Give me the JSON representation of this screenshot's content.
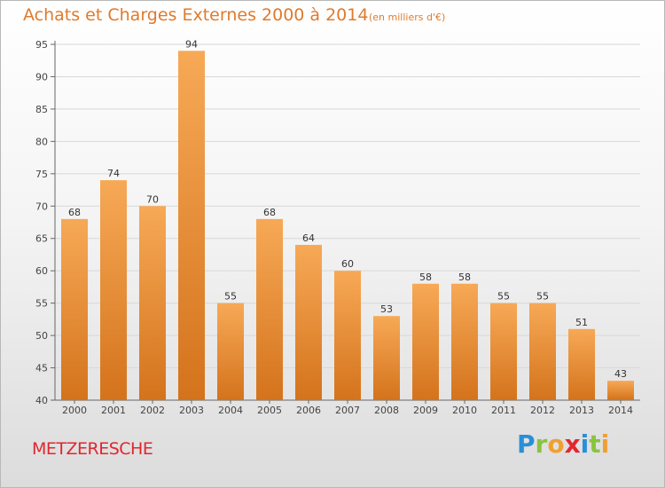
{
  "header": {
    "title": "Achats et Charges Externes 2000 à 2014",
    "subtitle": "(en milliers d'€)"
  },
  "footer": {
    "place": "METZERESCHE",
    "logo_text": "Proxiti"
  },
  "colors": {
    "bar_light": "#f7a956",
    "bar_dark": "#d4731c",
    "title": "#e07a2c",
    "place": "#e0262f"
  },
  "chart_data": {
    "type": "bar",
    "title": "Achats et Charges Externes 2000 à 2014",
    "subtitle": "(en milliers d'€)",
    "xlabel": "",
    "ylabel": "",
    "categories": [
      "2000",
      "2001",
      "2002",
      "2003",
      "2004",
      "2005",
      "2006",
      "2007",
      "2008",
      "2009",
      "2010",
      "2011",
      "2012",
      "2013",
      "2014"
    ],
    "values": [
      68,
      74,
      70,
      94,
      55,
      68,
      64,
      60,
      53,
      58,
      58,
      55,
      55,
      51,
      43
    ],
    "ylim": [
      40,
      95
    ],
    "yticks": [
      40,
      45,
      50,
      55,
      60,
      65,
      70,
      75,
      80,
      85,
      90,
      95
    ],
    "grid": true,
    "legend": "none"
  }
}
